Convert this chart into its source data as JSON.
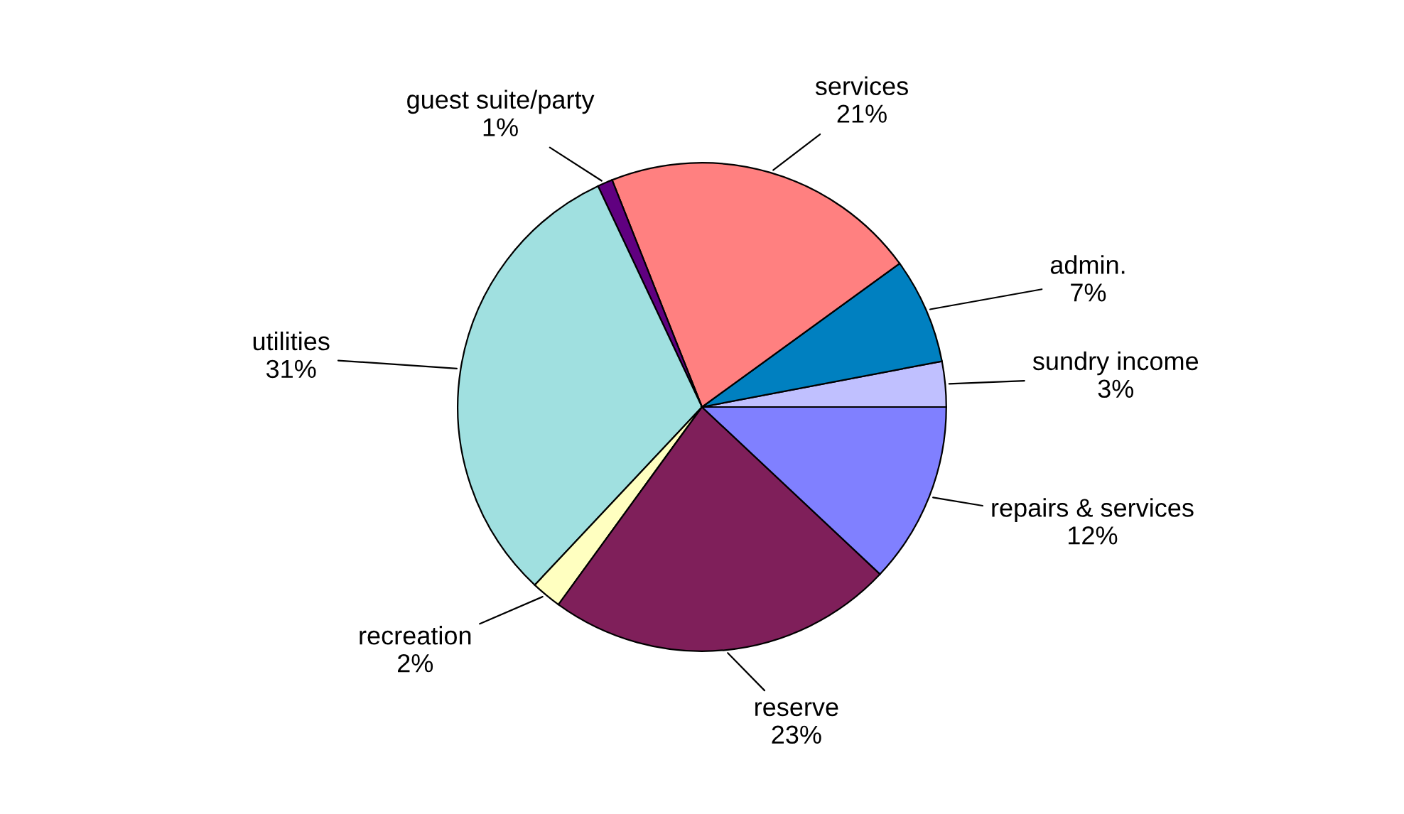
{
  "chart_data": {
    "type": "pie",
    "categories": [
      "sundry income",
      "admin.",
      "services",
      "guest suite/party",
      "utilities",
      "recreation",
      "reserve",
      "repairs & services"
    ],
    "values": [
      3,
      7,
      21,
      1,
      31,
      2,
      23,
      12
    ],
    "value_labels": [
      "3%",
      "7%",
      "21%",
      "1%",
      "31%",
      "2%",
      "23%",
      "12%"
    ],
    "colors": [
      "#c0c0ff",
      "#0080c0",
      "#ff8080",
      "#600080",
      "#a0e0e0",
      "#ffffc0",
      "#7f1f5a",
      "#8080ff"
    ]
  }
}
